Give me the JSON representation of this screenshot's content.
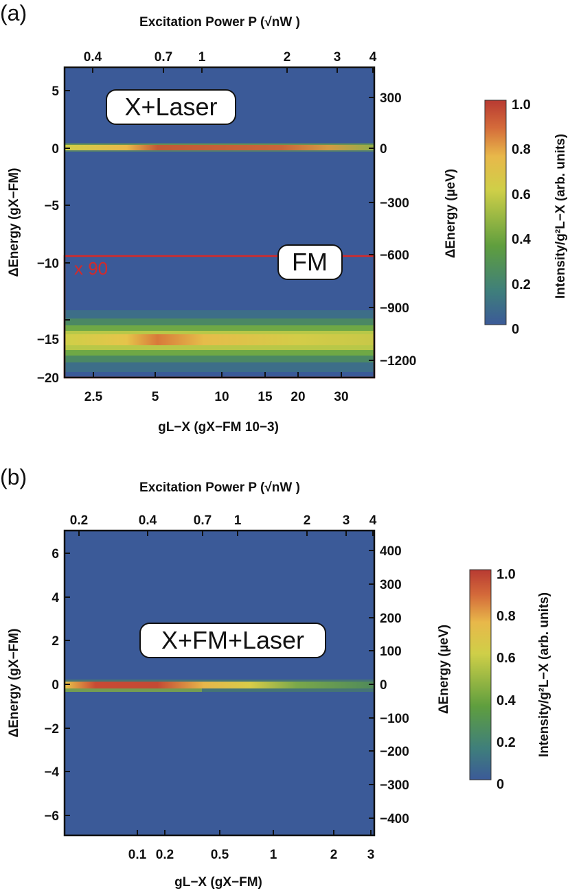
{
  "chart_data": [
    {
      "type": "heatmap",
      "panel_label": "(a)",
      "top_axis_label": "Excitation Power P (√nW )",
      "top_ticks": [
        "0.4",
        "0.7",
        "1",
        "2",
        "3",
        "4"
      ],
      "left_axis_label": "ΔEnergy (gX−FM)",
      "left_ticks": [
        "5",
        "0",
        "−5",
        "−10",
        "−15",
        "−20"
      ],
      "left_range": [
        -20,
        7
      ],
      "right_axis_label": "ΔEnergy (µeV)",
      "right_ticks": [
        "300",
        "0",
        "−300",
        "−600",
        "−900",
        "−1200"
      ],
      "bottom_axis_label": "gL−X (gX−FM 10−3)",
      "bottom_ticks": [
        "2.5",
        "5",
        "10",
        "15",
        "20",
        "30"
      ],
      "bottom_scale": "log",
      "annotations": [
        "X+Laser",
        "FM",
        "x 90"
      ],
      "rows": [
        {
          "energy": 0,
          "label": "X+Laser",
          "peak_intensity": 0.9,
          "width": 0.35
        },
        {
          "energy": -14.8,
          "label": "FM",
          "peak_intensity": 0.8,
          "width": 1.6,
          "scale_factor": "x 90"
        }
      ],
      "colorbar": {
        "label": "Intensity/g²L−X (arb. units)",
        "ticks": [
          "1.0",
          "0.8",
          "0.6",
          "0.4",
          "0.2",
          "0"
        ],
        "range": [
          0,
          1.0
        ],
        "colors": [
          "#3b5a98",
          "#3f7f7b",
          "#5f9e3e",
          "#cfcf48",
          "#e8b84a",
          "#d46a3a",
          "#b83a32"
        ]
      }
    },
    {
      "type": "heatmap",
      "panel_label": "(b)",
      "top_axis_label": "Excitation Power P (√nW )",
      "top_ticks": [
        "0.2",
        "0.4",
        "0.7",
        "1",
        "2",
        "3",
        "4"
      ],
      "left_axis_label": "ΔEnergy (gX−FM)",
      "left_ticks": [
        "6",
        "4",
        "2",
        "0",
        "−2",
        "−4",
        "−6"
      ],
      "left_range": [
        -7,
        7
      ],
      "right_axis_label": "ΔEnergy (µeV)",
      "right_ticks": [
        "400",
        "300",
        "200",
        "100",
        "0",
        "−100",
        "−200",
        "−300",
        "−400"
      ],
      "bottom_axis_label": "gL−X (gX−FM)",
      "bottom_ticks": [
        "0.1",
        "0.2",
        "0.5",
        "1",
        "2",
        "3"
      ],
      "bottom_scale": "log",
      "annotations": [
        "X+FM+Laser"
      ],
      "rows": [
        {
          "energy": 0,
          "label": "X+FM+Laser",
          "peak_intensity": 0.9,
          "width": 0.35
        }
      ],
      "colorbar": {
        "label": "Intensity/g²L−X (arb. units)",
        "ticks": [
          "1.0",
          "0.8",
          "0.6",
          "0.4",
          "0.2",
          "0"
        ],
        "range": [
          0,
          1.0
        ],
        "colors": [
          "#3b5a98",
          "#3f7f7b",
          "#5f9e3e",
          "#cfcf48",
          "#e8b84a",
          "#d46a3a",
          "#b83a32"
        ]
      }
    }
  ]
}
